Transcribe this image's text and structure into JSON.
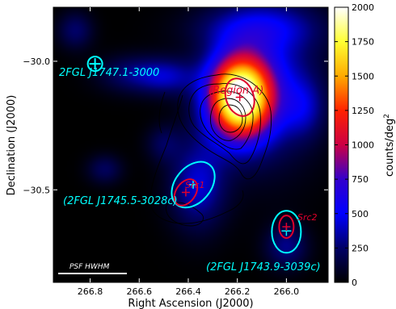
{
  "chart_data": {
    "type": "heatmap",
    "xlabel": "Right Ascension (J2000)",
    "ylabel": "Declination (J2000)",
    "xlim": [
      266.95,
      265.83
    ],
    "ylim": [
      -30.86,
      -29.79
    ],
    "x_ticks": [
      {
        "value": 266.8,
        "label": "266.8"
      },
      {
        "value": 266.6,
        "label": "266.6"
      },
      {
        "value": 266.4,
        "label": "266.4"
      },
      {
        "value": 266.2,
        "label": "266.2"
      },
      {
        "value": 266.0,
        "label": "266.0"
      }
    ],
    "y_ticks": [
      {
        "value": -30.0,
        "label": "−30.0"
      },
      {
        "value": -30.5,
        "label": "−30.5"
      }
    ],
    "colorbar": {
      "label": "counts/deg²",
      "range": [
        0,
        2000
      ],
      "ticks": [
        {
          "value": 0,
          "label": "0"
        },
        {
          "value": 250,
          "label": "250"
        },
        {
          "value": 500,
          "label": "500"
        },
        {
          "value": 750,
          "label": "750"
        },
        {
          "value": 1000,
          "label": "1000"
        },
        {
          "value": 1250,
          "label": "1250"
        },
        {
          "value": 1500,
          "label": "1500"
        },
        {
          "value": 1750,
          "label": "1750"
        },
        {
          "value": 2000,
          "label": "2000"
        }
      ]
    },
    "emission_blobs": [
      {
        "ra": 266.19,
        "dec": -30.14,
        "peak": 2000,
        "sra": 0.09,
        "sdec": 0.11
      },
      {
        "ra": 266.08,
        "dec": -30.07,
        "peak": 400,
        "sra": 0.15,
        "sdec": 0.22
      },
      {
        "ra": 266.36,
        "dec": -30.48,
        "peak": 420,
        "sra": 0.08,
        "sdec": 0.12
      },
      {
        "ra": 266.48,
        "dec": -30.06,
        "peak": 300,
        "sra": 0.08,
        "sdec": 0.05
      },
      {
        "ra": 266.62,
        "dec": -30.05,
        "peak": 280,
        "sra": 0.1,
        "sdec": 0.05
      },
      {
        "ra": 266.12,
        "dec": -29.87,
        "peak": 300,
        "sra": 0.18,
        "sdec": 0.06
      },
      {
        "ra": 265.93,
        "dec": -30.18,
        "peak": 260,
        "sra": 0.06,
        "sdec": 0.08
      },
      {
        "ra": 266.0,
        "dec": -30.72,
        "peak": 300,
        "sra": 0.06,
        "sdec": 0.06
      },
      {
        "ra": 266.74,
        "dec": -30.42,
        "peak": 220,
        "sra": 0.05,
        "sdec": 0.04
      },
      {
        "ra": 266.86,
        "dec": -29.88,
        "peak": 250,
        "sra": 0.05,
        "sdec": 0.05
      },
      {
        "ra": 266.5,
        "dec": -30.32,
        "peak": 200,
        "sra": 0.05,
        "sdec": 0.05
      }
    ],
    "sources": [
      {
        "name": "2FGL J1747.1-3000",
        "label": "2FGL J1747.1-3000",
        "ra": 266.78,
        "dec": -30.01,
        "color": "#00ffff"
      },
      {
        "name": "2FGL J1745.5-3028c",
        "label": "(2FGL J1745.5-3028c)",
        "ra": 266.38,
        "dec": -30.48,
        "color": "#00ffff"
      },
      {
        "name": "2FGL J1743.9-3039c",
        "label": "(2FGL J1743.9-3039c)",
        "ra": 266.0,
        "dec": -30.66,
        "color": "#00ffff"
      }
    ],
    "regions": [
      {
        "label": "Region A",
        "ra": 266.19,
        "dec": -30.14,
        "color": "#e0002a"
      },
      {
        "label": "Src1",
        "ra": 266.41,
        "dec": -30.51,
        "color": "#e0002a"
      },
      {
        "label": "Src2",
        "ra": 266.0,
        "dec": -30.65,
        "color": "#e0002a"
      }
    ],
    "annotations": {
      "psf_label": "PSF HWHM",
      "psf_length_deg": 0.28
    }
  }
}
